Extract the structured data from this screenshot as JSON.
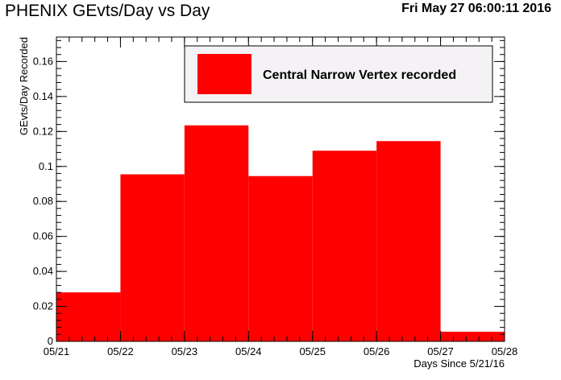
{
  "header": {
    "title": "PHENIX GEvts/Day vs Day",
    "timestamp": "Fri May 27 06:00:11 2016"
  },
  "colors": {
    "bar_fill": "#ff0000",
    "legend_bg": "#f5f2f5",
    "axis": "#000000"
  },
  "chart_data": {
    "type": "bar",
    "title": "PHENIX GEvts/Day vs Day",
    "xlabel": "Days Since 5/21/16",
    "ylabel": "GEvts/Day Recorded",
    "x_tick_labels": [
      "05/21",
      "05/22",
      "05/23",
      "05/24",
      "05/25",
      "05/26",
      "05/27",
      "05/28"
    ],
    "xlim": [
      0,
      7
    ],
    "ylim": [
      0,
      0.174
    ],
    "y_ticks": [
      0,
      0.02,
      0.04,
      0.06,
      0.08,
      0.1,
      0.12,
      0.14,
      0.16
    ],
    "y_tick_labels": [
      "0",
      "0.02",
      "0.04",
      "0.06",
      "0.08",
      "0.1",
      "0.12",
      "0.14",
      "0.16"
    ],
    "y_minor_step": 0.004,
    "x_minor_step": 0.2,
    "series": [
      {
        "name": "Central Narrow Vertex recorded",
        "bin_edges": [
          0,
          1,
          2,
          3,
          4,
          5,
          6,
          7
        ],
        "values": [
          0.028,
          0.0955,
          0.1235,
          0.0945,
          0.109,
          0.1145,
          0.0055
        ]
      }
    ],
    "legend": {
      "position": "top-right"
    },
    "grid": false
  }
}
